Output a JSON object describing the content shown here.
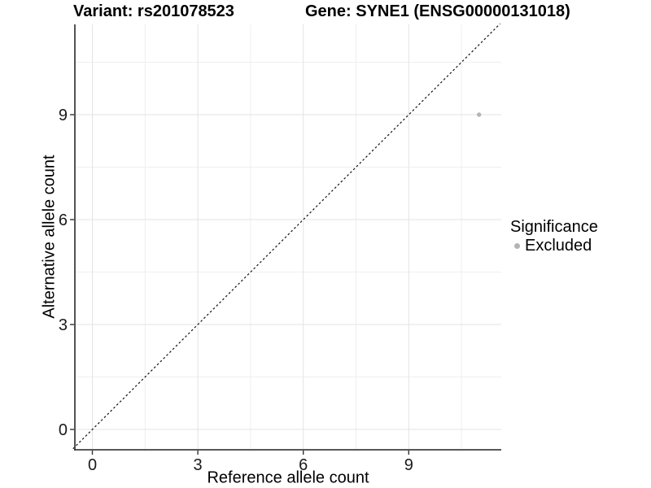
{
  "titles": {
    "variant": "Variant: rs201078523",
    "gene": "Gene: SYNE1 (ENSG00000131018)"
  },
  "legend": {
    "title": "Significance",
    "items": [
      {
        "label": "Excluded",
        "color": "#b4b4b4"
      }
    ]
  },
  "chart_data": {
    "type": "scatter",
    "title_left": "Variant: rs201078523",
    "title_right": "Gene: SYNE1 (ENSG00000131018)",
    "xlabel": "Reference allele count",
    "ylabel": "Alternative allele count",
    "xlim": [
      -0.55,
      11.6
    ],
    "ylim": [
      -0.6,
      11.6
    ],
    "x_major_ticks": [
      0,
      3,
      6,
      9
    ],
    "y_major_ticks": [
      0,
      3,
      6,
      9
    ],
    "x_minor_gridlines": [
      1.5,
      4.5,
      7.5,
      10.5
    ],
    "y_minor_gridlines": [
      1.5,
      4.5,
      7.5,
      10.5
    ],
    "points": [
      {
        "x": 11,
        "y": 9,
        "series": "Excluded",
        "color": "#b4b4b4"
      }
    ],
    "reference_line": {
      "equation": "y = x",
      "style": "dashed",
      "color": "#111111"
    },
    "grid": true,
    "legend_position": "right",
    "style": {
      "background": "#ffffff",
      "major_grid_color": "#e3e3e3",
      "minor_grid_color": "#efefef",
      "axis_line_color": "#404040",
      "tick_color": "#333333",
      "tick_label_color": "#1a1a1a",
      "point_radius": 2.7,
      "tick_label_size": 20
    }
  }
}
